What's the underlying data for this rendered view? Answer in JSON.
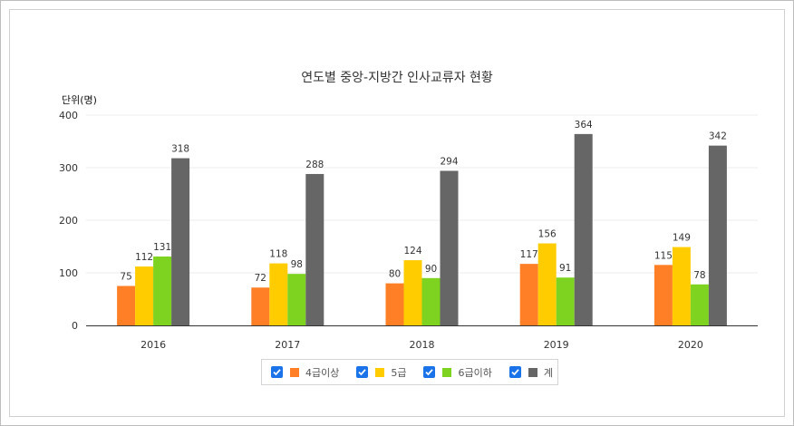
{
  "colors": {
    "grade4_above": "#ff7f27",
    "grade5": "#ffcc00",
    "grade6_below": "#7ed321",
    "total": "#666666",
    "axis": "#333333",
    "grid": "#ececec",
    "checkbox": "#1a73e8"
  },
  "legend": {
    "items": [
      {
        "label": "4급이상",
        "icon": "checkbox-checked-icon",
        "checked": true
      },
      {
        "label": "5급",
        "icon": "checkbox-checked-icon",
        "checked": true
      },
      {
        "label": "6급이하",
        "icon": "checkbox-checked-icon",
        "checked": true
      },
      {
        "label": "계",
        "icon": "checkbox-checked-icon",
        "checked": true
      }
    ]
  },
  "chart_data": {
    "type": "bar",
    "title": "연도별 중앙-지방간 인사교류자 현황",
    "unit_label": "단위(명)",
    "xlabel": "",
    "ylabel": "",
    "categories": [
      "2016",
      "2017",
      "2018",
      "2019",
      "2020"
    ],
    "ylim": [
      0,
      400
    ],
    "yticks": [
      0,
      100,
      200,
      300,
      400
    ],
    "grid": true,
    "legend_position": "bottom",
    "data_labels": true,
    "series": [
      {
        "name": "4급이상",
        "values": [
          75,
          72,
          80,
          117,
          115
        ]
      },
      {
        "name": "5급",
        "values": [
          112,
          118,
          124,
          156,
          149
        ]
      },
      {
        "name": "6급이하",
        "values": [
          131,
          98,
          90,
          91,
          78
        ]
      },
      {
        "name": "계",
        "values": [
          318,
          288,
          294,
          364,
          342
        ]
      }
    ]
  }
}
